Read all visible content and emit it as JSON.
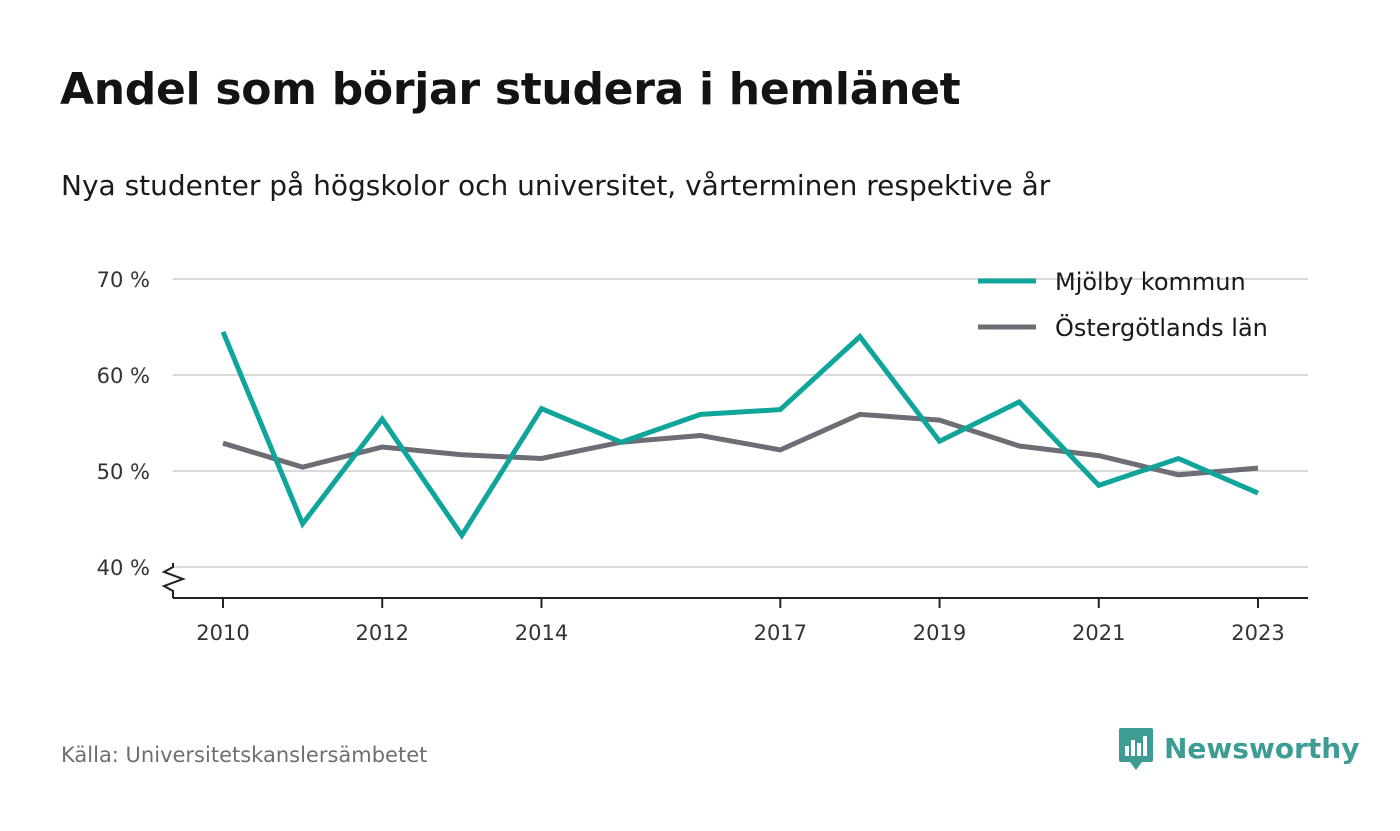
{
  "title": "Andel som börjar studera i hemlänet",
  "subtitle": "Nya studenter på högskolor och universitet, vårterminen respektive år",
  "source": "Källa: Universitetskanslersämbetet",
  "brand": {
    "name": "Newsworthy",
    "icon": "newsworthy-logo-icon",
    "color": "#3d9c94"
  },
  "chart_data": {
    "type": "line",
    "x": [
      2010,
      2011,
      2012,
      2013,
      2014,
      2015,
      2016,
      2017,
      2018,
      2019,
      2020,
      2021,
      2022,
      2023
    ],
    "x_tick_labels": [
      "2010",
      "2012",
      "2014",
      "2017",
      "2019",
      "2021",
      "2023"
    ],
    "y_tick_labels": [
      "40 %",
      "50 %",
      "60 %",
      "70 %"
    ],
    "ylim": [
      40,
      70
    ],
    "y_ticks": [
      40,
      50,
      60,
      70
    ],
    "y_axis_break": true,
    "grid": true,
    "legend_position": "top-right",
    "series": [
      {
        "name": "Mjölby kommun",
        "color": "#0fa59a",
        "values": [
          64.5,
          44.5,
          55.4,
          43.3,
          56.5,
          53.0,
          55.9,
          56.4,
          64.0,
          53.1,
          57.2,
          48.5,
          51.3,
          47.7
        ]
      },
      {
        "name": "Östergötlands län",
        "color": "#6e6c75",
        "values": [
          52.9,
          50.4,
          52.5,
          51.7,
          51.3,
          53.0,
          53.7,
          52.2,
          55.9,
          55.3,
          52.6,
          51.6,
          49.6,
          50.3
        ]
      }
    ]
  }
}
